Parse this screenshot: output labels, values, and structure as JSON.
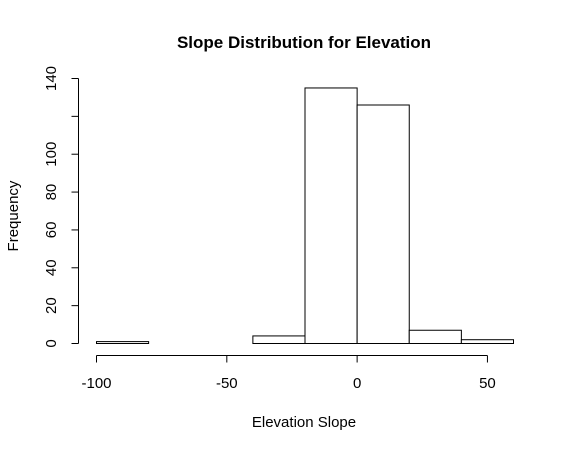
{
  "chart_data": {
    "type": "bar",
    "title": "Slope Distribution for Elevation",
    "xlabel": "Elevation Slope",
    "ylabel": "Frequency",
    "bins": [
      {
        "start": -100,
        "end": -80,
        "value": 1
      },
      {
        "start": -80,
        "end": -60,
        "value": 0
      },
      {
        "start": -60,
        "end": -40,
        "value": 0
      },
      {
        "start": -40,
        "end": -20,
        "value": 4
      },
      {
        "start": -20,
        "end": 0,
        "value": 135
      },
      {
        "start": 0,
        "end": 20,
        "value": 126
      },
      {
        "start": 20,
        "end": 40,
        "value": 7
      },
      {
        "start": 40,
        "end": 60,
        "value": 2
      }
    ],
    "x_ticks": [
      -100,
      -50,
      0,
      50
    ],
    "x_tick_labels": [
      "-100",
      "-50",
      "0",
      "50"
    ],
    "y_ticks": [
      0,
      20,
      40,
      60,
      80,
      100,
      120,
      140
    ],
    "y_tick_labels": [
      "0",
      "20",
      "40",
      "60",
      "80",
      "100",
      "",
      "140"
    ],
    "xlim": [
      -100,
      60
    ],
    "ylim": [
      0,
      140
    ],
    "grid": false
  }
}
